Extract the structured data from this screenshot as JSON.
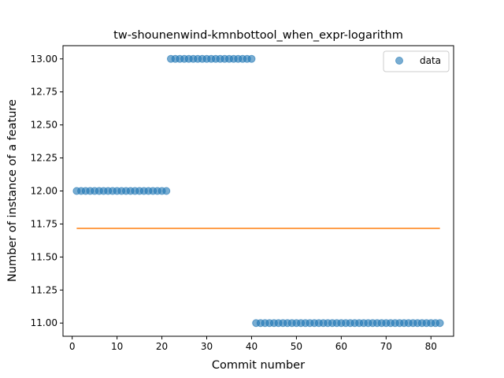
{
  "chart_data": {
    "type": "scatter",
    "title": "tw-shounenwind-kmnbottool_when_expr-logarithm",
    "xlabel": "Commit number",
    "ylabel": "Number of instance of a feature",
    "xlim": [
      -2.05,
      85.05
    ],
    "ylim": [
      10.9,
      13.1
    ],
    "x_ticks": [
      0,
      10,
      20,
      30,
      40,
      50,
      60,
      70,
      80
    ],
    "y_ticks": [
      11.0,
      11.25,
      11.5,
      11.75,
      12.0,
      12.25,
      12.5,
      12.75,
      13.0
    ],
    "y_tick_labels": [
      "11.00",
      "11.25",
      "11.50",
      "11.75",
      "12.00",
      "12.25",
      "12.50",
      "12.75",
      "13.00"
    ],
    "grid": false,
    "legend_position": "top-right",
    "series": [
      {
        "name": "data",
        "kind": "scatter",
        "color": "#1f77b4",
        "segments": [
          {
            "x_start": 1,
            "x_end": 21,
            "y": 12.0
          },
          {
            "x_start": 22,
            "x_end": 40,
            "y": 13.0
          },
          {
            "x_start": 41,
            "x_end": 82,
            "y": 11.0
          }
        ]
      },
      {
        "kind": "line",
        "color": "#ff7f0e",
        "x": [
          1,
          82
        ],
        "y": [
          11.717,
          11.717
        ]
      }
    ]
  }
}
